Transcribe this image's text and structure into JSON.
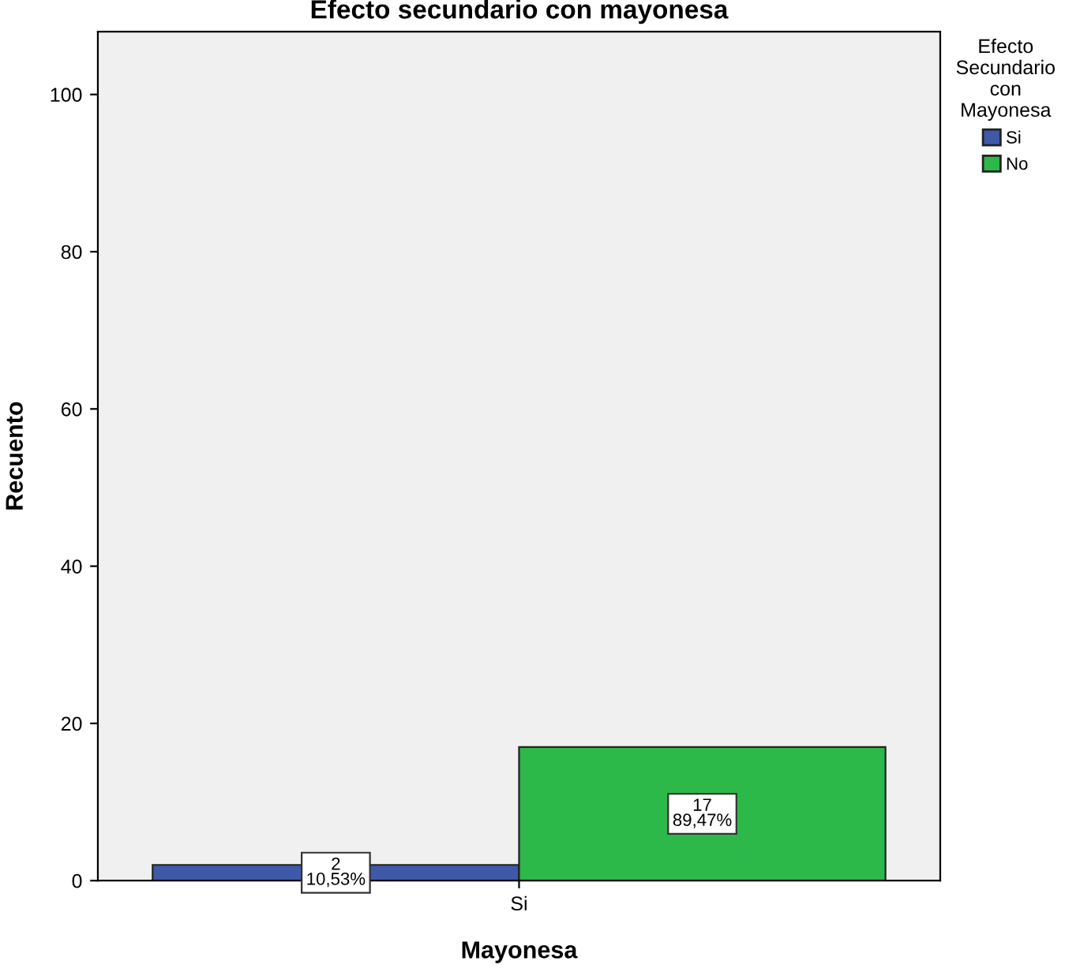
{
  "chart_data": {
    "type": "bar",
    "title": "Efecto secundario con mayonesa",
    "xlabel": "Mayonesa",
    "ylabel": "Recuento",
    "legend_title": "Efecto\nSecundario\ncon\nMayonesa",
    "categories": [
      "Si"
    ],
    "series": [
      {
        "name": "Si",
        "color": "#3e59a8",
        "values": [
          2
        ],
        "value_labels": [
          "2\n10,53%"
        ]
      },
      {
        "name": "No",
        "color": "#2db84a",
        "values": [
          17
        ],
        "value_labels": [
          "17\n89,47%"
        ]
      }
    ],
    "ylim": [
      0,
      108
    ],
    "yticks": [
      0,
      20,
      40,
      60,
      80,
      100
    ],
    "grid": false,
    "legend": "right"
  }
}
